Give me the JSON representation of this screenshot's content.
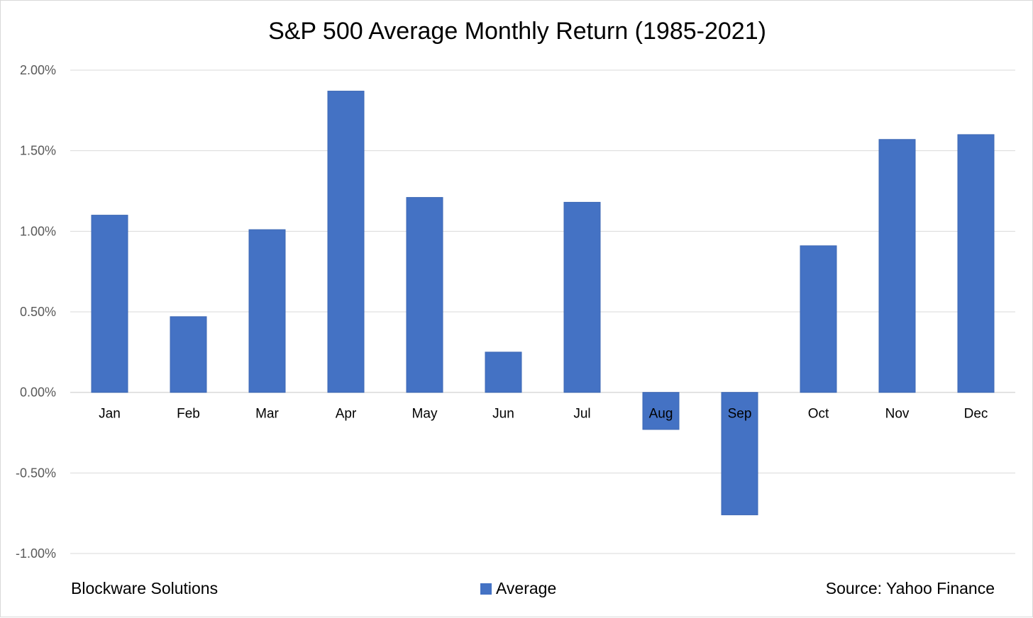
{
  "chart_data": {
    "type": "bar",
    "title": "S&P 500 Average Monthly Return (1985-2021)",
    "categories": [
      "Jan",
      "Feb",
      "Mar",
      "Apr",
      "May",
      "Jun",
      "Jul",
      "Aug",
      "Sep",
      "Oct",
      "Nov",
      "Dec"
    ],
    "series": [
      {
        "name": "Average",
        "values": [
          1.1,
          0.47,
          1.01,
          1.87,
          1.21,
          0.25,
          1.18,
          -0.23,
          -0.76,
          0.91,
          1.57,
          1.6
        ]
      }
    ],
    "unit": "%",
    "ylim": [
      -1.0,
      2.0
    ],
    "y_ticks": [
      2.0,
      1.5,
      1.0,
      0.5,
      0.0,
      -0.5,
      -1.0
    ],
    "y_tick_labels": [
      "2.00%",
      "1.50%",
      "1.00%",
      "0.50%",
      "0.00%",
      "-0.50%",
      "-1.00%"
    ],
    "grid": true,
    "legend_position": "bottom-center",
    "bar_color": "#4472c4",
    "gridline_color": "#d9d9d9"
  },
  "footer": {
    "left_text": "Blockware Solutions",
    "right_text": "Source: Yahoo Finance",
    "legend_label": "Average"
  }
}
